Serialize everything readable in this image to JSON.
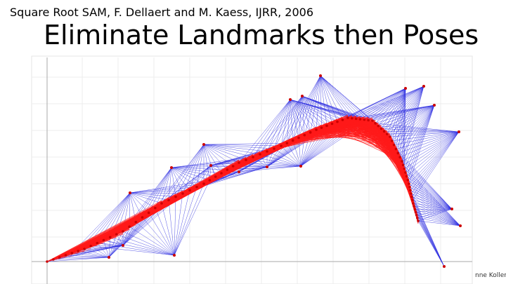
{
  "header": {
    "citation": "Square Root SAM, F. Dellaert and M. Kaess, IJRR, 2006",
    "title": "Eliminate Landmarks then Poses"
  },
  "footer": {
    "credit": "nne Koller"
  }
}
